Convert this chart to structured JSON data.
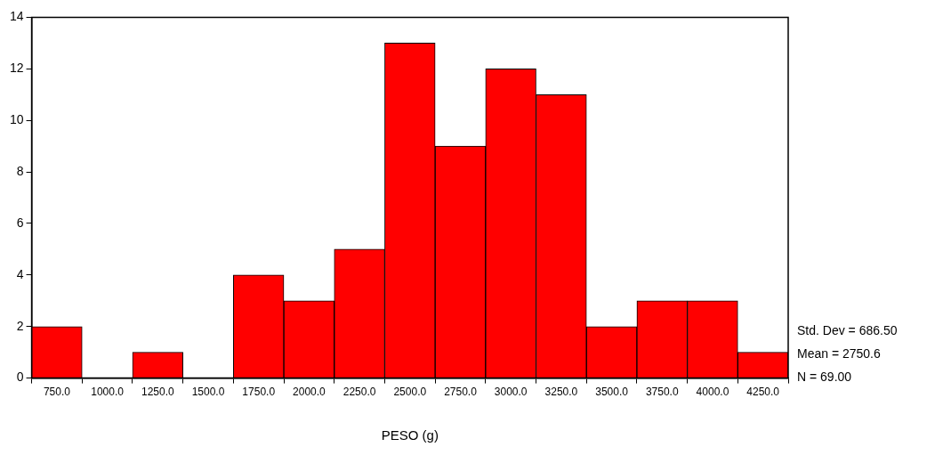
{
  "chart_data": {
    "type": "histogram",
    "xlabel": "PESO (g)",
    "bins": [
      625,
      875,
      1125,
      1375,
      1625,
      1875,
      2125,
      2375,
      2625,
      2875,
      3125,
      3375,
      3625,
      3875,
      4125,
      4375
    ],
    "values": [
      2,
      0,
      1,
      0,
      4,
      3,
      5,
      13,
      9,
      12,
      11,
      2,
      3,
      3,
      1
    ],
    "color": "#ff0000",
    "xlim": [
      625,
      4375
    ],
    "xticks": [
      {
        "value": 750,
        "label": "750.0"
      },
      {
        "value": 1000,
        "label": "1000.0"
      },
      {
        "value": 1250,
        "label": "1250.0"
      },
      {
        "value": 1500,
        "label": "1500.0"
      },
      {
        "value": 1750,
        "label": "1750.0"
      },
      {
        "value": 2000,
        "label": "2000.0"
      },
      {
        "value": 2250,
        "label": "2250.0"
      },
      {
        "value": 2500,
        "label": "2500.0"
      },
      {
        "value": 2750,
        "label": "2750.0"
      },
      {
        "value": 3000,
        "label": "3000.0"
      },
      {
        "value": 3250,
        "label": "3250.0"
      },
      {
        "value": 3500,
        "label": "3500.0"
      },
      {
        "value": 3750,
        "label": "3750.0"
      },
      {
        "value": 4000,
        "label": "4000.0"
      },
      {
        "value": 4250,
        "label": "4250.0"
      }
    ],
    "ylim": [
      0,
      14
    ],
    "yticks": [
      0,
      2,
      4,
      6,
      8,
      10,
      12,
      14
    ],
    "grid": false,
    "legend": false,
    "annotations": [
      "Std. Dev = 686.50",
      "Mean = 2750.6",
      "N = 69.00"
    ]
  }
}
